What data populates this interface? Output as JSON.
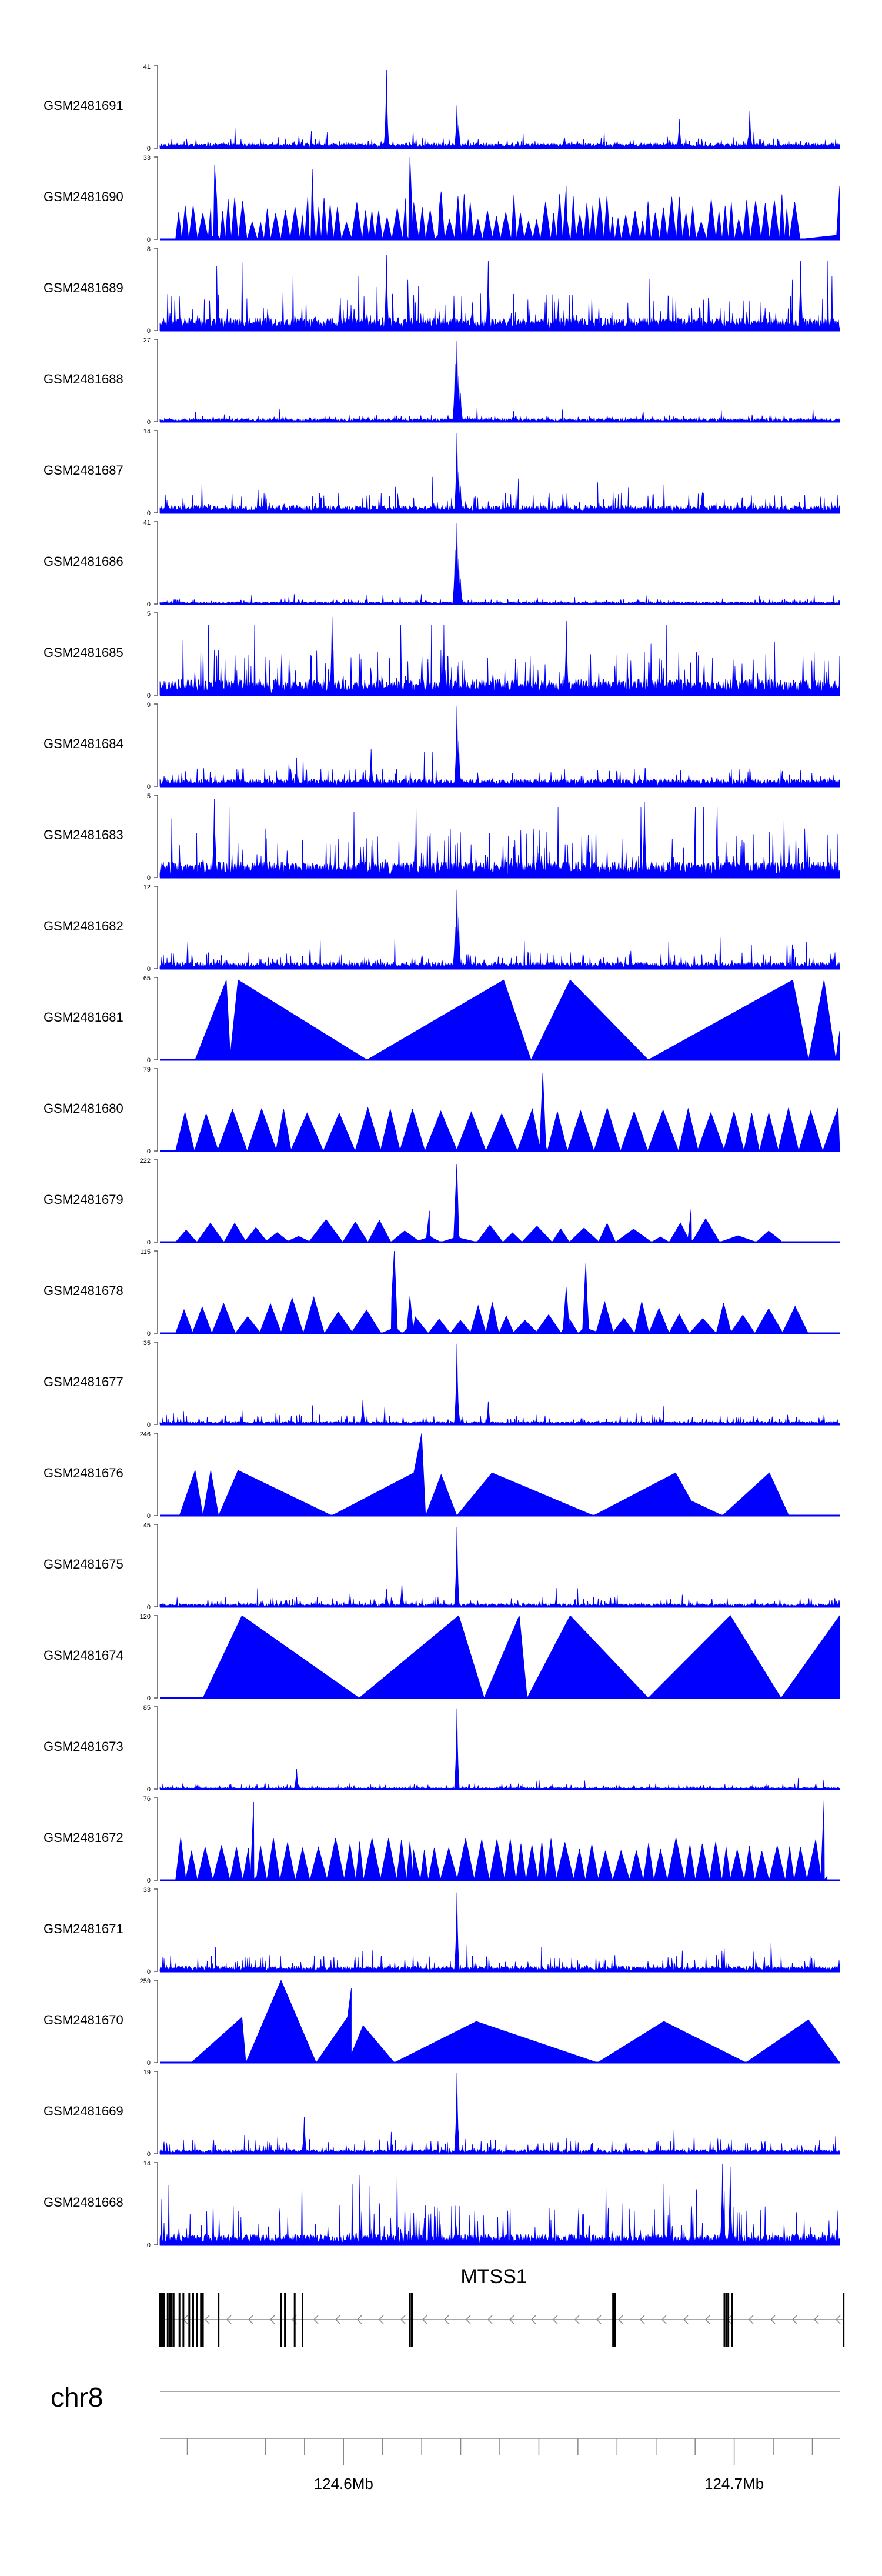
{
  "chart_data": {
    "type": "area",
    "chromosome": "chr8",
    "x_range_mb": [
      124.536,
      124.71
    ],
    "color": "#0000FF",
    "tracks": [
      {
        "name": "GSM2481691",
        "ymax": "41",
        "style": "dense",
        "seed": 11,
        "base": 0.05,
        "noise": 0.12,
        "peaks": [
          [
            124.594,
            0.95
          ],
          [
            124.612,
            0.52
          ],
          [
            124.6125,
            0.28
          ],
          [
            124.669,
            0.35
          ],
          [
            124.687,
            0.45
          ]
        ]
      },
      {
        "name": "GSM2481690",
        "ymax": "33",
        "style": "tri",
        "seed": 12,
        "n": 82,
        "hmin": 0.2,
        "hmax": 0.55,
        "spikes": [
          [
            124.55,
            0.9
          ],
          [
            124.575,
            0.85
          ],
          [
            124.6,
            1.0
          ],
          [
            124.608,
            0.58
          ],
          [
            124.64,
            0.65
          ],
          [
            124.71,
            0.65
          ]
        ]
      },
      {
        "name": "GSM2481689",
        "ymax": "8",
        "style": "dense",
        "seed": 13,
        "base": 0.12,
        "noise": 0.45,
        "peaks": [
          [
            124.594,
            0.92
          ],
          [
            124.62,
            0.85
          ],
          [
            124.7,
            0.85
          ]
        ]
      },
      {
        "name": "GSM2481688",
        "ymax": "27",
        "style": "dense",
        "seed": 14,
        "base": 0.03,
        "noise": 0.08,
        "peaks": [
          [
            124.612,
            0.98
          ],
          [
            124.6115,
            0.7
          ],
          [
            124.6125,
            0.55
          ],
          [
            124.613,
            0.35
          ]
        ]
      },
      {
        "name": "GSM2481687",
        "ymax": "14",
        "style": "dense",
        "seed": 15,
        "base": 0.07,
        "noise": 0.25,
        "peaks": [
          [
            124.612,
            0.97
          ],
          [
            124.6125,
            0.5
          ],
          [
            124.613,
            0.32
          ]
        ]
      },
      {
        "name": "GSM2481686",
        "ymax": "41",
        "style": "dense",
        "seed": 16,
        "base": 0.02,
        "noise": 0.06,
        "peaks": [
          [
            124.612,
            0.98
          ],
          [
            124.6115,
            0.65
          ],
          [
            124.6125,
            0.55
          ],
          [
            124.613,
            0.3
          ]
        ]
      },
      {
        "name": "GSM2481685",
        "ymax": "5",
        "style": "dense",
        "seed": 17,
        "base": 0.15,
        "noise": 0.55,
        "peaks": [
          [
            124.58,
            0.95
          ],
          [
            124.64,
            0.9
          ]
        ]
      },
      {
        "name": "GSM2481684",
        "ymax": "9",
        "style": "dense",
        "seed": 18,
        "base": 0.07,
        "noise": 0.22,
        "peaks": [
          [
            124.612,
            0.97
          ],
          [
            124.6125,
            0.55
          ],
          [
            124.59,
            0.45
          ]
        ]
      },
      {
        "name": "GSM2481683",
        "ymax": "5",
        "style": "dense",
        "seed": 19,
        "base": 0.15,
        "noise": 0.6,
        "peaks": [
          [
            124.55,
            0.95
          ],
          [
            124.66,
            0.92
          ]
        ]
      },
      {
        "name": "GSM2481682",
        "ymax": "12",
        "style": "dense",
        "seed": 20,
        "base": 0.06,
        "noise": 0.2,
        "peaks": [
          [
            124.612,
            0.95
          ],
          [
            124.6125,
            0.62
          ],
          [
            124.6115,
            0.5
          ]
        ]
      },
      {
        "name": "GSM2481681",
        "ymax": "65",
        "style": "poly",
        "seed": 21,
        "points": [
          [
            124.545,
            0
          ],
          [
            124.553,
            0.97
          ],
          [
            124.554,
            0.06
          ],
          [
            124.556,
            0.97
          ],
          [
            124.589,
            0
          ],
          [
            124.624,
            0.97
          ],
          [
            124.631,
            0
          ],
          [
            124.641,
            0.97
          ],
          [
            124.661,
            0
          ],
          [
            124.698,
            0.97
          ],
          [
            124.702,
            0
          ],
          [
            124.706,
            0.97
          ],
          [
            124.709,
            0
          ],
          [
            124.71,
            0.35
          ],
          [
            124.71,
            0
          ]
        ]
      },
      {
        "name": "GSM2481680",
        "ymax": "79",
        "style": "tri",
        "seed": 22,
        "n": 27,
        "hmin": 0.45,
        "hmax": 0.53,
        "spikes": [
          [
            124.634,
            0.95
          ]
        ]
      },
      {
        "name": "GSM2481679",
        "ymax": "222",
        "style": "tri",
        "seed": 23,
        "n": 24,
        "hmin": 0.06,
        "hmax": 0.3,
        "spikes": [
          [
            124.612,
            0.95
          ],
          [
            124.605,
            0.38
          ],
          [
            124.672,
            0.42
          ]
        ]
      },
      {
        "name": "GSM2481678",
        "ymax": "115",
        "style": "tri",
        "seed": 24,
        "n": 30,
        "hmin": 0.15,
        "hmax": 0.45,
        "spikes": [
          [
            124.596,
            1.0
          ],
          [
            124.6,
            0.45
          ],
          [
            124.64,
            0.56
          ],
          [
            124.645,
            0.85
          ]
        ]
      },
      {
        "name": "GSM2481677",
        "ymax": "35",
        "style": "dense",
        "seed": 25,
        "base": 0.03,
        "noise": 0.12,
        "peaks": [
          [
            124.612,
            0.98
          ],
          [
            124.588,
            0.3
          ],
          [
            124.62,
            0.28
          ]
        ]
      },
      {
        "name": "GSM2481676",
        "ymax": "246",
        "style": "poly",
        "seed": 26,
        "points": [
          [
            124.541,
            0
          ],
          [
            124.545,
            0.55
          ],
          [
            124.547,
            0
          ],
          [
            124.549,
            0.55
          ],
          [
            124.551,
            0
          ],
          [
            124.556,
            0.55
          ],
          [
            124.58,
            0
          ],
          [
            124.601,
            0.52
          ],
          [
            124.603,
            1.0
          ],
          [
            124.604,
            0
          ],
          [
            124.608,
            0.5
          ],
          [
            124.612,
            0
          ],
          [
            124.621,
            0.52
          ],
          [
            124.647,
            0
          ],
          [
            124.668,
            0.52
          ],
          [
            124.672,
            0.18
          ],
          [
            124.68,
            0
          ],
          [
            124.692,
            0.52
          ],
          [
            124.697,
            0
          ]
        ]
      },
      {
        "name": "GSM2481675",
        "ymax": "45",
        "style": "dense",
        "seed": 27,
        "base": 0.03,
        "noise": 0.12,
        "peaks": [
          [
            124.612,
            0.97
          ],
          [
            124.598,
            0.28
          ],
          [
            124.594,
            0.22
          ]
        ]
      },
      {
        "name": "GSM2481674",
        "ymax": "120",
        "style": "poly",
        "seed": 28,
        "points": [
          [
            124.547,
            0
          ],
          [
            124.557,
            1.0
          ],
          [
            124.587,
            0
          ],
          [
            124.6125,
            1.0
          ],
          [
            124.619,
            0
          ],
          [
            124.628,
            1.0
          ],
          [
            124.63,
            0
          ],
          [
            124.641,
            1.0
          ],
          [
            124.641,
            0.48
          ],
          [
            124.641,
            1.0
          ],
          [
            124.661,
            0
          ],
          [
            124.682,
            1.0
          ],
          [
            124.682,
            0.6
          ],
          [
            124.682,
            1.0
          ],
          [
            124.695,
            0
          ],
          [
            124.71,
            1.0
          ],
          [
            124.71,
            0
          ]
        ]
      },
      {
        "name": "GSM2481673",
        "ymax": "85",
        "style": "dense",
        "seed": 29,
        "base": 0.015,
        "noise": 0.07,
        "peaks": [
          [
            124.612,
            0.98
          ],
          [
            124.571,
            0.25
          ]
        ]
      },
      {
        "name": "GSM2481672",
        "ymax": "76",
        "style": "tri",
        "seed": 30,
        "n": 50,
        "hmin": 0.35,
        "hmax": 0.52,
        "spikes": [
          [
            124.56,
            0.95
          ],
          [
            124.6,
            0.47
          ],
          [
            124.706,
            0.98
          ]
        ]
      },
      {
        "name": "GSM2481671",
        "ymax": "33",
        "style": "dense",
        "seed": 31,
        "base": 0.05,
        "noise": 0.2,
        "peaks": [
          [
            124.612,
            0.96
          ]
        ]
      },
      {
        "name": "GSM2481670",
        "ymax": "259",
        "style": "poly",
        "seed": 32,
        "points": [
          [
            124.544,
            0
          ],
          [
            124.557,
            0.55
          ],
          [
            124.558,
            0
          ],
          [
            124.567,
            1.0
          ],
          [
            124.576,
            0
          ],
          [
            124.584,
            0.55
          ],
          [
            124.585,
            0.9
          ],
          [
            124.585,
            0.1
          ],
          [
            124.588,
            0.45
          ],
          [
            124.596,
            0
          ],
          [
            124.617,
            0.5
          ],
          [
            124.648,
            0
          ],
          [
            124.665,
            0.5
          ],
          [
            124.686,
            0
          ],
          [
            124.702,
            0.52
          ],
          [
            124.712,
            0
          ]
        ]
      },
      {
        "name": "GSM2481669",
        "ymax": "19",
        "style": "dense",
        "seed": 33,
        "base": 0.04,
        "noise": 0.18,
        "peaks": [
          [
            124.612,
            0.98
          ],
          [
            124.573,
            0.45
          ]
        ]
      },
      {
        "name": "GSM2481668",
        "ymax": "14",
        "style": "dense",
        "seed": 34,
        "base": 0.1,
        "noise": 0.5,
        "peaks": [
          [
            124.68,
            0.98
          ],
          [
            124.682,
            0.95
          ]
        ]
      }
    ],
    "gene": {
      "name": "MTSS1",
      "strand": "-",
      "start_mb": 124.536,
      "end_mb": 124.711,
      "exons_mb": [
        124.536,
        124.5365,
        124.537,
        124.538,
        124.5385,
        124.539,
        124.5395,
        124.541,
        124.542,
        124.5435,
        124.5445,
        124.5455,
        124.5465,
        124.547,
        124.551,
        124.567,
        124.568,
        124.5705,
        124.5725,
        124.6,
        124.6005,
        124.652,
        124.6525,
        124.6805,
        124.681,
        124.6815,
        124.6825,
        124.711
      ]
    },
    "axis": {
      "ticks_mb": [
        124.543,
        124.563,
        124.573,
        124.583,
        124.593,
        124.603,
        124.613,
        124.623,
        124.633,
        124.643,
        124.653,
        124.663,
        124.673,
        124.683,
        124.693,
        124.703
      ],
      "labeled_ticks": [
        {
          "value": 124.583,
          "label": "124.6Mb"
        },
        {
          "value": 124.683,
          "label": "124.7Mb"
        }
      ]
    }
  }
}
